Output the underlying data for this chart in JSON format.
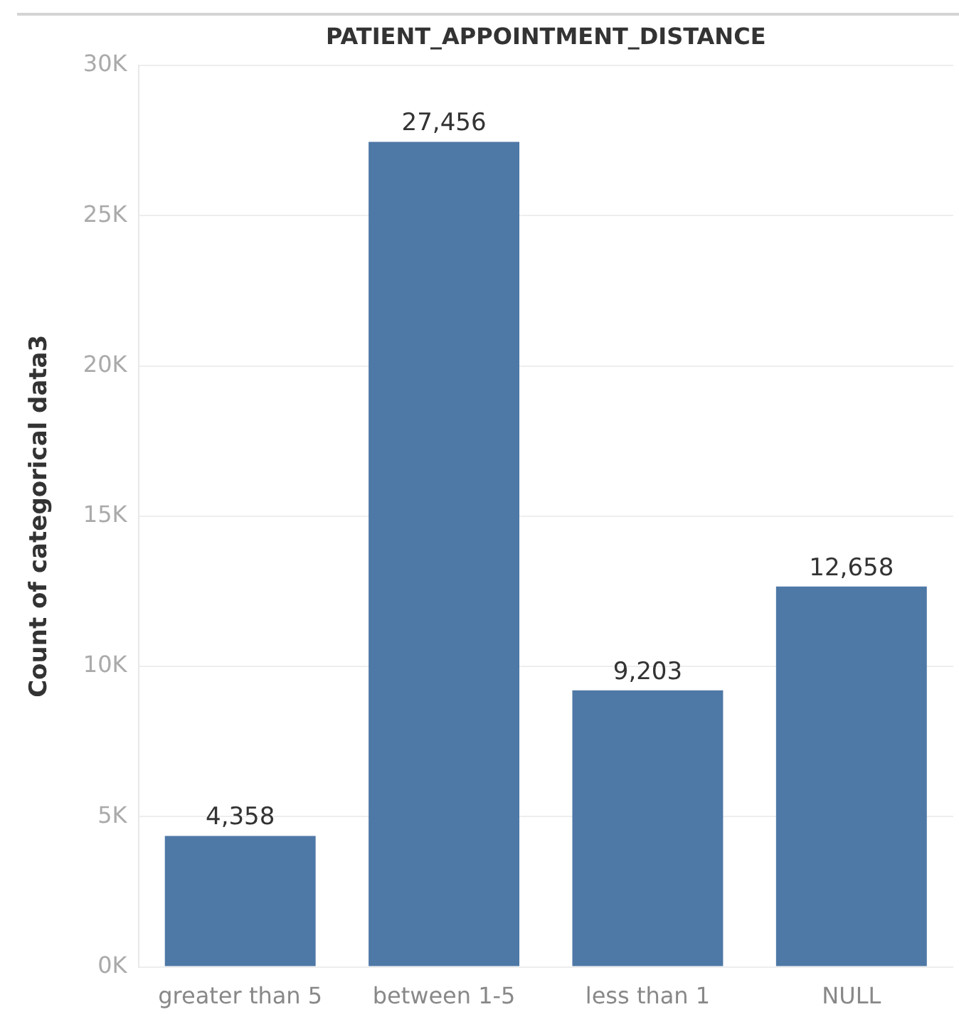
{
  "chart_data": {
    "type": "bar",
    "title": "PATIENT_APPOINTMENT_DISTANCE",
    "ylabel": "Count of categorical data3",
    "categories": [
      "greater than 5",
      "between 1-5",
      "less than 1",
      "NULL"
    ],
    "values": [
      4358,
      27456,
      9203,
      12658
    ],
    "value_labels": [
      "4,358",
      "27,456",
      "9,203",
      "12,658"
    ],
    "color": "#4e78a6",
    "ylim": [
      0,
      30000
    ],
    "yticks": [
      {
        "value": 0,
        "label": "0K"
      },
      {
        "value": 5000,
        "label": "5K"
      },
      {
        "value": 10000,
        "label": "10K"
      },
      {
        "value": 15000,
        "label": "15K"
      },
      {
        "value": 20000,
        "label": "20K"
      },
      {
        "value": 25000,
        "label": "25K"
      },
      {
        "value": 30000,
        "label": "30K"
      }
    ],
    "grid": "y"
  }
}
